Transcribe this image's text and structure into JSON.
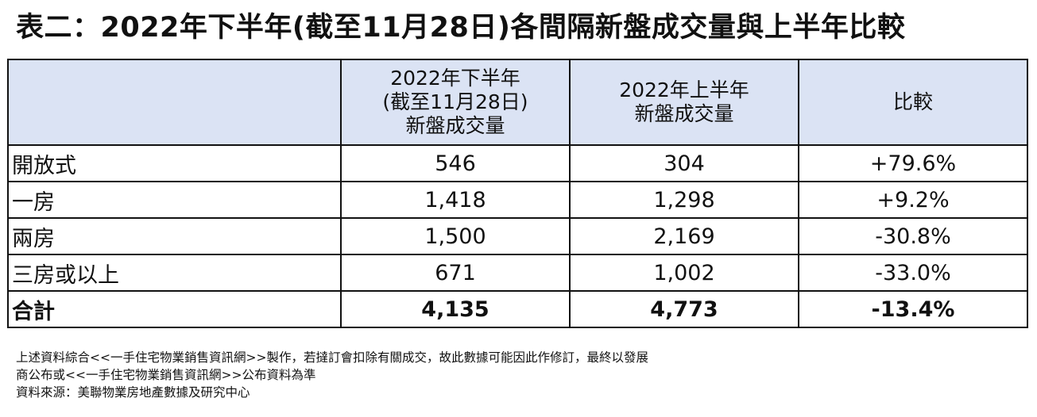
{
  "title": "表二：2022年下半年(截至11月28日)各間隔新盤成交量與上半年比較",
  "table": {
    "headers": [
      {
        "lines": [
          ""
        ]
      },
      {
        "lines": [
          "2022年下半年",
          "(截至11月28日)",
          "新盤成交量"
        ]
      },
      {
        "lines": [
          "2022年上半年",
          "新盤成交量"
        ]
      },
      {
        "lines": [
          "比較"
        ]
      }
    ],
    "rows": [
      {
        "label": "開放式",
        "h2": "546",
        "h1": "304",
        "change": "+79.6%"
      },
      {
        "label": "一房",
        "h2": "1,418",
        "h1": "1,298",
        "change": "+9.2%"
      },
      {
        "label": "兩房",
        "h2": "1,500",
        "h1": "2,169",
        "change": "-30.8%"
      },
      {
        "label": "三房或以上",
        "h2": "671",
        "h1": "1,002",
        "change": "-33.0%"
      }
    ],
    "total": {
      "label": "合計",
      "h2": "4,135",
      "h1": "4,773",
      "change": "-13.4%"
    },
    "header_bg": "#dbe3f4"
  },
  "notes": [
    "上述資料綜合<<一手住宅物業銷售資訊網>>製作，若撻訂會扣除有關成交，故此數據可能因此作修訂，最終以發展",
    "商公布或<<一手住宅物業銷售資訊網>>公布資料為準",
    "資料來源：美聯物業房地產數據及研究中心"
  ]
}
